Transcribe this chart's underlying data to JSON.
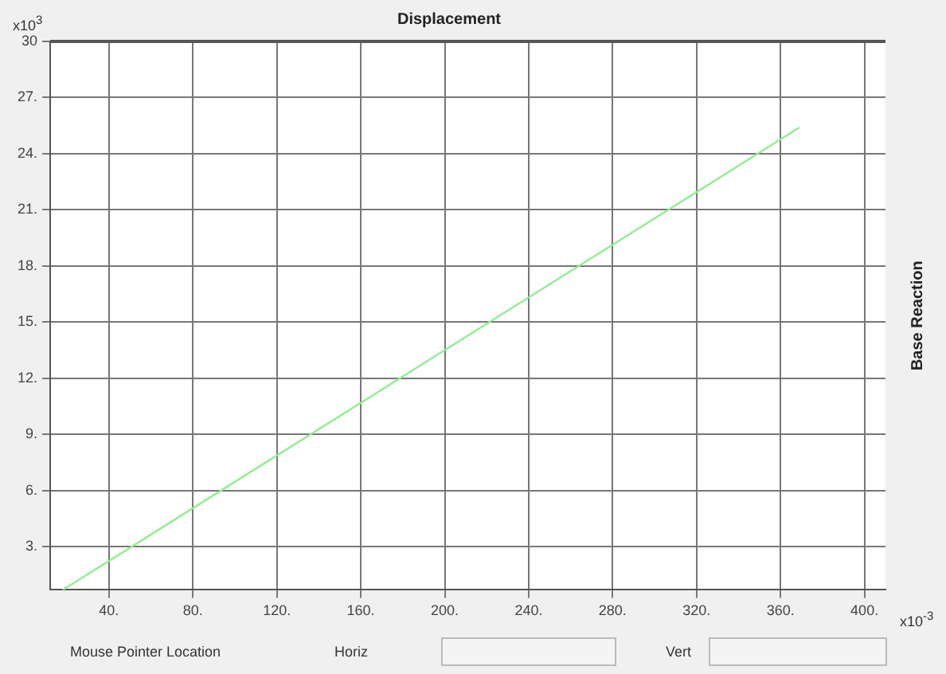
{
  "chart_data": {
    "type": "line",
    "title": "Displacement",
    "ylabel": "Base Reaction",
    "annotations": [
      "x10$^{3}$",
      "x10$^{-3}$",
      "Mouse Pointer Location",
      "Horiz",
      "Vert"
    ],
    "x": [
      18,
      369
    ],
    "series": [
      {
        "color": "#90ee90",
        "values": [
          0.7,
          25.4
        ]
      }
    ],
    "xlim": [
      12,
      410
    ],
    "xticks": [
      {
        "value": 40,
        "label": "40."
      },
      {
        "value": 80,
        "label": "80."
      },
      {
        "value": 120,
        "label": "120."
      },
      {
        "value": 160,
        "label": "160."
      },
      {
        "value": 200,
        "label": "200."
      },
      {
        "value": 240,
        "label": "240."
      },
      {
        "value": 280,
        "label": "280."
      },
      {
        "value": 320,
        "label": "320."
      },
      {
        "value": 360,
        "label": "360."
      },
      {
        "value": 400,
        "label": "400."
      }
    ],
    "ylim": [
      0.7,
      30
    ],
    "yticks": [
      {
        "value": 3,
        "label": "3."
      },
      {
        "value": 6,
        "label": "6."
      },
      {
        "value": 9,
        "label": "9."
      },
      {
        "value": 12,
        "label": "12."
      },
      {
        "value": 15,
        "label": "15."
      },
      {
        "value": 18,
        "label": "18."
      },
      {
        "value": 21,
        "label": "21."
      },
      {
        "value": 24,
        "label": "24."
      },
      {
        "value": 27,
        "label": "27."
      },
      30
    ],
    "grid": true,
    "marker": "none",
    "line_style": "solid",
    "legend": false
  }
}
